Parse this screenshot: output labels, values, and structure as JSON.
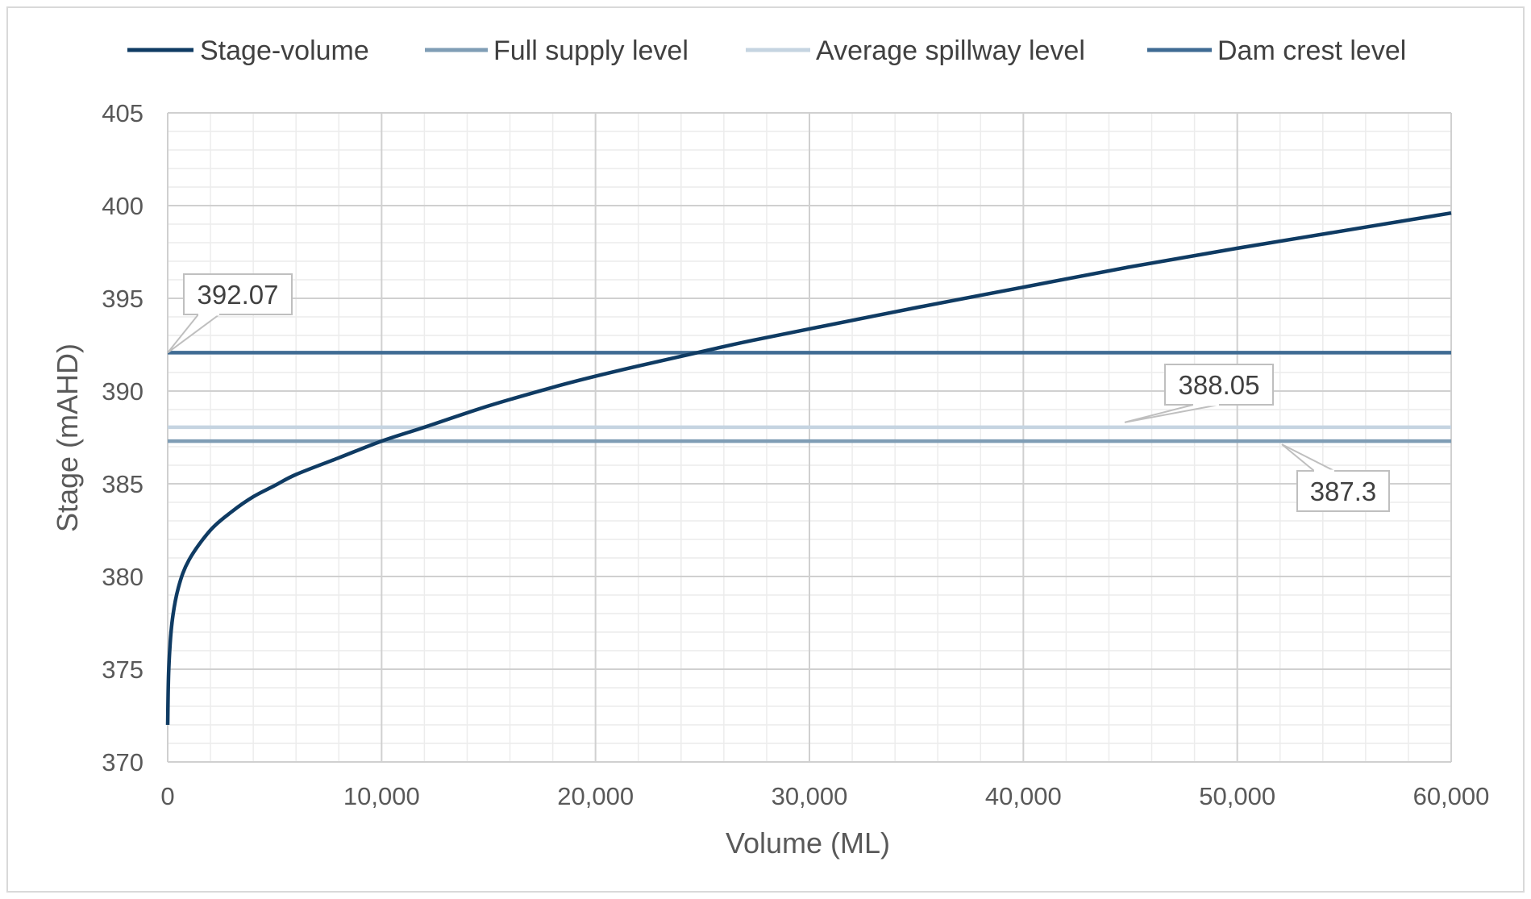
{
  "chart_data": {
    "type": "line",
    "xlabel": "Volume  (ML)",
    "ylabel": "Stage (mAHD)",
    "xlim": [
      0,
      60000
    ],
    "ylim": [
      370,
      405
    ],
    "x_ticks": [
      "0",
      "10,000",
      "20,000",
      "30,000",
      "40,000",
      "50,000",
      "60,000"
    ],
    "y_ticks": [
      "370",
      "375",
      "380",
      "385",
      "390",
      "395",
      "400",
      "405"
    ],
    "grid": true,
    "legend_position": "top",
    "series": [
      {
        "name": "Stage-volume",
        "color": "#0f3b63",
        "x": [
          0,
          50,
          200,
          500,
          1000,
          2000,
          3000,
          4000,
          5000,
          6000,
          8000,
          10000,
          12000,
          15000,
          18000,
          20000,
          22000,
          24750,
          27000,
          30000,
          35000,
          40000,
          45000,
          50000,
          55000,
          60000
        ],
        "y": [
          372.0,
          375.0,
          377.5,
          379.4,
          380.9,
          382.5,
          383.5,
          384.3,
          384.9,
          385.5,
          386.4,
          387.3,
          388.05,
          389.2,
          390.2,
          390.8,
          391.35,
          392.07,
          392.65,
          393.35,
          394.5,
          395.6,
          396.7,
          397.7,
          398.65,
          399.6
        ]
      },
      {
        "name": "Full supply level",
        "color": "#7f9db5",
        "y": 387.3
      },
      {
        "name": "Average spillway level",
        "color": "#c5d4e1",
        "y": 388.05
      },
      {
        "name": "Dam crest level",
        "color": "#3f6b93",
        "y": 392.07
      }
    ],
    "annotations": [
      "392.07",
      "388.05",
      "387.3"
    ]
  }
}
